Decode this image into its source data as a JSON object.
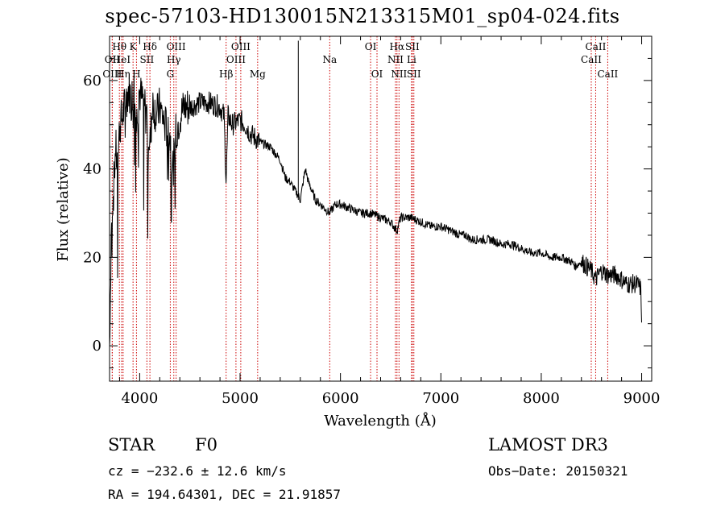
{
  "colors": {
    "line_marker": "#cc0000",
    "spectrum": "#000000",
    "background": "#ffffff"
  },
  "chart_data": {
    "type": "line",
    "title": "spec-57103-HD130015N213315M01_sp04-024.fits",
    "xlabel": "Wavelength (Å)",
    "ylabel": "Flux (relative)",
    "xlim": [
      3700,
      9100
    ],
    "ylim": [
      -8,
      70
    ],
    "xticks": [
      4000,
      5000,
      6000,
      7000,
      8000,
      9000
    ],
    "yticks": [
      0,
      20,
      40,
      60
    ],
    "spectrum": {
      "x": [
        3700,
        3720,
        3740,
        3760,
        3780,
        3800,
        3830,
        3860,
        3890,
        3920,
        3950,
        3968,
        3990,
        4020,
        4060,
        4101,
        4130,
        4170,
        4200,
        4250,
        4300,
        4330,
        4340,
        4360,
        4400,
        4450,
        4500,
        4600,
        4700,
        4800,
        4840,
        4861,
        4880,
        4920,
        5000,
        5050,
        5100,
        5150,
        5200,
        5300,
        5400,
        5450,
        5500,
        5550,
        5580,
        5600,
        5650,
        5680,
        5700,
        5750,
        5800,
        5890,
        5950,
        6000,
        6100,
        6200,
        6300,
        6400,
        6500,
        6563,
        6600,
        6700,
        6800,
        6900,
        7000,
        7100,
        7200,
        7250,
        7300,
        7400,
        7500,
        7600,
        7700,
        7800,
        7900,
        8000,
        8100,
        8200,
        8300,
        8340,
        8400,
        8498,
        8542,
        8600,
        8662,
        8700,
        8750,
        8800,
        8850,
        8900,
        8950,
        8990,
        9000
      ],
      "y": [
        0,
        30,
        35,
        45,
        40,
        50,
        52,
        55,
        58,
        56,
        60,
        50,
        58,
        56,
        55,
        45,
        55,
        52,
        54,
        50,
        48,
        40,
        42,
        48,
        52,
        54,
        54,
        55,
        55,
        54,
        52,
        37,
        52,
        50,
        51,
        50,
        48,
        47,
        46,
        45,
        42,
        38,
        37,
        35,
        34,
        33,
        40,
        37,
        36,
        33,
        32,
        30,
        32,
        32,
        31,
        30,
        30,
        29,
        28,
        26,
        29,
        29,
        28,
        27,
        27,
        26,
        25,
        25,
        24,
        24,
        24,
        23,
        23,
        22,
        21,
        21,
        20,
        20,
        19,
        18,
        19,
        17,
        15,
        17,
        16,
        16,
        16,
        15,
        14,
        14,
        14,
        13,
        7
      ]
    },
    "lines": [
      {
        "label": "OII",
        "x": 3727,
        "row": 2
      },
      {
        "label": "OIII",
        "x": 3727,
        "row": 3
      },
      {
        "label": "Hθ",
        "x": 3798,
        "row": 1
      },
      {
        "label": "HeI",
        "x": 3820,
        "row": 2
      },
      {
        "label": "Hη",
        "x": 3835,
        "row": 3
      },
      {
        "label": "K",
        "x": 3934,
        "row": 1
      },
      {
        "label": "H",
        "x": 3968,
        "row": 3
      },
      {
        "label": "Hδ",
        "x": 4102,
        "row": 1
      },
      {
        "label": "SII",
        "x": 4072,
        "row": 2
      },
      {
        "label": "OIII",
        "x": 4363,
        "row": 1
      },
      {
        "label": "Hγ",
        "x": 4340,
        "row": 2
      },
      {
        "label": "G",
        "x": 4305,
        "row": 3
      },
      {
        "label": "Hβ",
        "x": 4861,
        "row": 3
      },
      {
        "label": "OIII",
        "x": 4959,
        "row": 2
      },
      {
        "label": "OIII",
        "x": 5007,
        "row": 1
      },
      {
        "label": "Mg",
        "x": 5175,
        "row": 3
      },
      {
        "label": "Na",
        "x": 5893,
        "row": 2
      },
      {
        "label": "OI",
        "x": 6300,
        "row": 1
      },
      {
        "label": "OI",
        "x": 6364,
        "row": 3
      },
      {
        "label": "NII",
        "x": 6548,
        "row": 2
      },
      {
        "label": "Hα",
        "x": 6563,
        "row": 1
      },
      {
        "label": "NII",
        "x": 6583,
        "row": 3
      },
      {
        "label": "Li",
        "x": 6708,
        "row": 2
      },
      {
        "label": "SII",
        "x": 6716,
        "row": 1
      },
      {
        "label": "SII",
        "x": 6731,
        "row": 3
      },
      {
        "label": "CaII",
        "x": 8498,
        "row": 2
      },
      {
        "label": "CaII",
        "x": 8542,
        "row": 1
      },
      {
        "label": "CaII",
        "x": 8662,
        "row": 3
      }
    ]
  },
  "info": {
    "object_class": "STAR",
    "subclass": "F0",
    "survey": "LAMOST DR3",
    "cz": "cz = −232.6 ± 12.6 km/s",
    "obs_date": "Obs−Date: 20150321",
    "coords": "RA = 194.64301, DEC =  21.91857"
  }
}
